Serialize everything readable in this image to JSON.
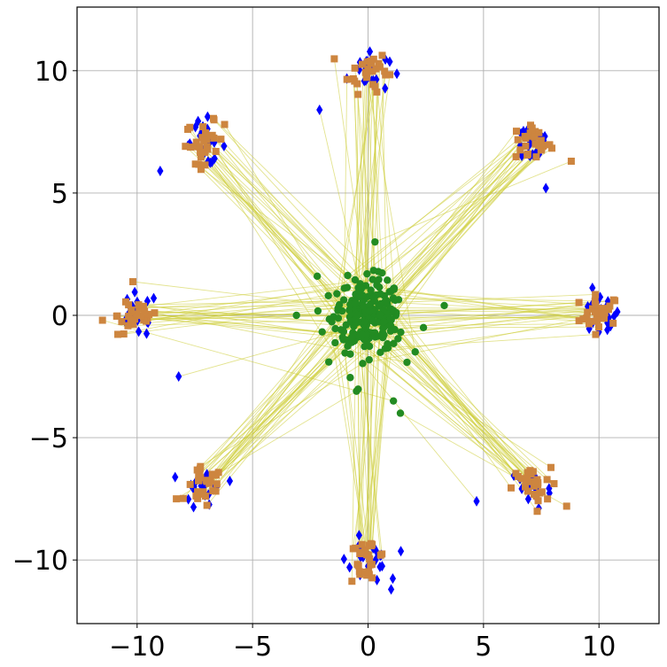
{
  "chart_data": {
    "type": "scatter",
    "title": "",
    "xlabel": "",
    "ylabel": "",
    "xlim": [
      -12.6,
      12.6
    ],
    "ylim": [
      -12.6,
      12.6
    ],
    "xticks": [
      -10,
      -5,
      0,
      5,
      10
    ],
    "yticks": [
      -10,
      -5,
      0,
      5,
      10
    ],
    "xtick_labels": [
      "−10",
      "−5",
      "0",
      "5",
      "10"
    ],
    "ytick_labels": [
      "−10",
      "−5",
      "0",
      "5",
      "10"
    ],
    "grid": true,
    "legend": "none",
    "cluster_centers": [
      [
        10,
        0
      ],
      [
        7.07,
        7.07
      ],
      [
        0,
        10
      ],
      [
        -7.07,
        7.07
      ],
      [
        -10,
        0
      ],
      [
        -7.07,
        -7.07
      ],
      [
        0,
        -10
      ],
      [
        7.07,
        -7.07
      ]
    ],
    "series": [
      {
        "marker": "circle",
        "color": "#228b22",
        "description_values": "source samples concentrated around origin",
        "spread_sd": 0.75,
        "outliers": [
          [
            0.3,
            3.0
          ],
          [
            1.4,
            -4.0
          ],
          [
            1.1,
            -3.5
          ],
          [
            -0.5,
            -3.1
          ],
          [
            3.3,
            0.4
          ],
          [
            -3.1,
            0.0
          ],
          [
            2.4,
            -0.5
          ],
          [
            -2.2,
            1.6
          ]
        ]
      },
      {
        "marker": "diamond",
        "color": "#0000ff",
        "spread_sd": 0.45,
        "outliers": [
          [
            -2.1,
            8.4
          ],
          [
            -9.0,
            5.9
          ],
          [
            -8.2,
            -2.5
          ],
          [
            4.7,
            -7.6
          ],
          [
            7.7,
            5.2
          ],
          [
            -0.8,
            -10.3
          ],
          [
            1.0,
            -11.2
          ]
        ]
      },
      {
        "marker": "square",
        "color": "#cd853f",
        "spread_sd": 0.42,
        "outliers": [
          [
            8.8,
            6.3
          ],
          [
            8.6,
            -7.8
          ],
          [
            -11.5,
            -0.2
          ],
          [
            -8.3,
            -7.5
          ]
        ]
      }
    ],
    "connections": {
      "from": "circle",
      "to": "square",
      "color": "#cccc33",
      "count_per_cluster": 28
    }
  }
}
